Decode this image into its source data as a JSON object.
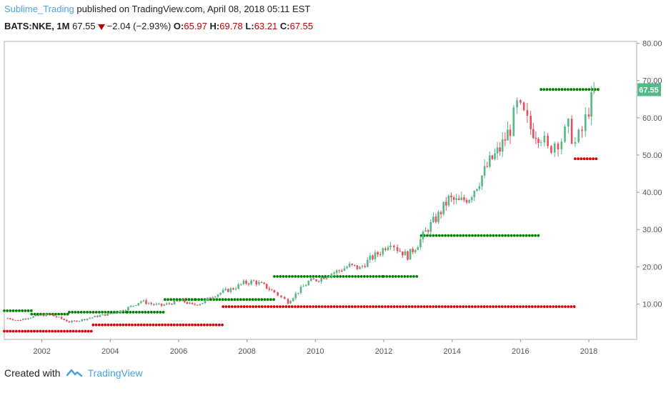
{
  "header": {
    "username": "Sublime_Trading",
    "published_text": " published on TradingView.com, April 08, 2018 05:11 EST",
    "symbol": "BATS:NKE, 1M",
    "last": "67.55",
    "change": "−2.04 (−2.93%)",
    "o_label": "O:",
    "o_value": "65.97",
    "h_label": "H:",
    "h_value": "69.78",
    "l_label": "L:",
    "l_value": "63.21",
    "c_label": "C:",
    "c_value": "67.55"
  },
  "footer": {
    "created_with": "Created with",
    "brand": "TradingView"
  },
  "chart_data": {
    "type": "candlestick",
    "x_tick_labels": [
      "2002",
      "2004",
      "2006",
      "2008",
      "2010",
      "2012",
      "2014",
      "2016",
      "2018"
    ],
    "y_tick_labels": [
      "10.00",
      "20.00",
      "30.00",
      "40.00",
      "50.00",
      "60.00",
      "70.00",
      "80.00"
    ],
    "xlim": [
      2000.9,
      2019.4
    ],
    "ylim": [
      0.5,
      80.5
    ],
    "price_label": "67.55",
    "price_value": 67.55,
    "colors": {
      "up": "#53b987",
      "down": "#eb4d5c",
      "resistance": "#008000",
      "support": "#e00000",
      "price_tag": "#53b987"
    },
    "candles_close": [
      [
        2001.0,
        6.2
      ],
      [
        2001.3,
        5.6
      ],
      [
        2001.6,
        6.4
      ],
      [
        2001.9,
        6.8
      ],
      [
        2002.2,
        7.2
      ],
      [
        2002.5,
        6.3
      ],
      [
        2002.8,
        5.2
      ],
      [
        2003.1,
        5.6
      ],
      [
        2003.4,
        6.3
      ],
      [
        2003.7,
        6.9
      ],
      [
        2004.0,
        7.4
      ],
      [
        2004.3,
        8.2
      ],
      [
        2004.6,
        9.3
      ],
      [
        2004.9,
        10.8
      ],
      [
        2005.2,
        10.0
      ],
      [
        2005.5,
        9.6
      ],
      [
        2005.8,
        10.3
      ],
      [
        2006.1,
        10.9
      ],
      [
        2006.4,
        9.7
      ],
      [
        2006.7,
        10.4
      ],
      [
        2007.0,
        12.2
      ],
      [
        2007.3,
        13.3
      ],
      [
        2007.6,
        14.2
      ],
      [
        2007.9,
        15.6
      ],
      [
        2008.2,
        16.1
      ],
      [
        2008.5,
        14.9
      ],
      [
        2008.8,
        13.2
      ],
      [
        2009.0,
        11.8
      ],
      [
        2009.2,
        10.6
      ],
      [
        2009.5,
        13.4
      ],
      [
        2009.8,
        16.0
      ],
      [
        2010.1,
        16.7
      ],
      [
        2010.4,
        18.0
      ],
      [
        2010.7,
        19.0
      ],
      [
        2011.0,
        20.3
      ],
      [
        2011.3,
        19.6
      ],
      [
        2011.6,
        22.1
      ],
      [
        2011.9,
        24.0
      ],
      [
        2012.2,
        26.9
      ],
      [
        2012.4,
        24.8
      ],
      [
        2012.7,
        22.9
      ],
      [
        2013.0,
        26.2
      ],
      [
        2013.3,
        30.4
      ],
      [
        2013.6,
        33.8
      ],
      [
        2013.9,
        38.2
      ],
      [
        2014.2,
        37.3
      ],
      [
        2014.5,
        38.8
      ],
      [
        2014.8,
        43.2
      ],
      [
        2015.1,
        48.1
      ],
      [
        2015.4,
        51.6
      ],
      [
        2015.7,
        57.2
      ],
      [
        2015.9,
        63.1
      ],
      [
        2016.1,
        60.4
      ],
      [
        2016.3,
        57.1
      ],
      [
        2016.6,
        55.3
      ],
      [
        2016.8,
        51.2
      ],
      [
        2017.0,
        53.6
      ],
      [
        2017.2,
        54.3
      ],
      [
        2017.4,
        57.3
      ],
      [
        2017.6,
        53.1
      ],
      [
        2017.8,
        56.4
      ],
      [
        2018.0,
        62.6
      ],
      [
        2018.15,
        66.1
      ],
      [
        2018.25,
        67.55
      ]
    ],
    "resistance_levels": [
      {
        "from": 2000.9,
        "to": 2001.7,
        "value": 8.2
      },
      {
        "from": 2001.7,
        "to": 2002.8,
        "value": 7.3
      },
      {
        "from": 2002.8,
        "to": 2004.5,
        "value": 7.8
      },
      {
        "from": 2004.5,
        "to": 2005.6,
        "value": 7.8
      },
      {
        "from": 2005.6,
        "to": 2006.5,
        "value": 11.2
      },
      {
        "from": 2006.5,
        "to": 2008.8,
        "value": 11.2
      },
      {
        "from": 2008.8,
        "to": 2012.0,
        "value": 17.4
      },
      {
        "from": 2012.0,
        "to": 2013.0,
        "value": 17.4
      },
      {
        "from": 2013.1,
        "to": 2016.6,
        "value": 28.4
      },
      {
        "from": 2016.6,
        "to": 2018.3,
        "value": 67.6
      }
    ],
    "support_levels": [
      {
        "from": 2000.9,
        "to": 2003.5,
        "value": 2.7
      },
      {
        "from": 2003.5,
        "to": 2007.3,
        "value": 4.4
      },
      {
        "from": 2007.3,
        "to": 2017.6,
        "value": 9.3
      },
      {
        "from": 2017.6,
        "to": 2018.3,
        "value": 49.0
      }
    ]
  }
}
